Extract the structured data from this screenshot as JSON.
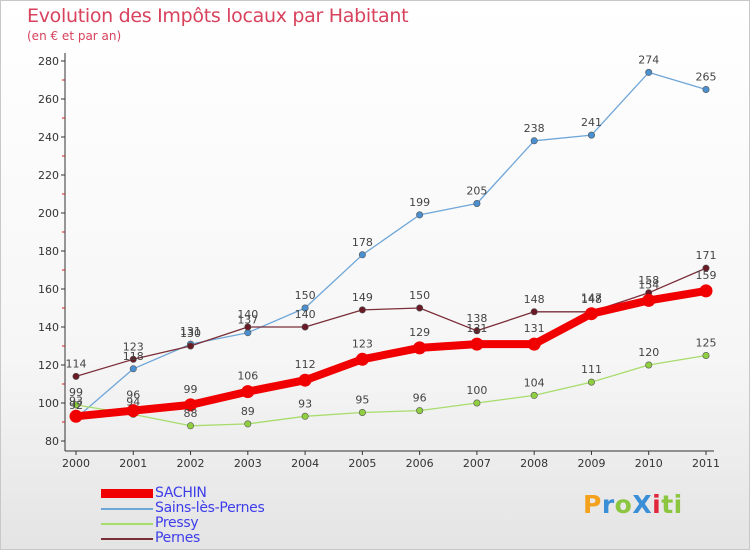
{
  "title": "Evolution des Impôts locaux par Habitant",
  "subtitle": "(en € et par an)",
  "logo": {
    "text": "ProXiti",
    "letter_colors": [
      "#f4a11d",
      "#3a8fd6",
      "#8cc640",
      "#3a8fd6",
      "#e0263a",
      "#8cc640",
      "#8cc640"
    ]
  },
  "chart_data": {
    "type": "line",
    "x": [
      "2000",
      "2001",
      "2002",
      "2003",
      "2004",
      "2005",
      "2006",
      "2007",
      "2008",
      "2009",
      "2010",
      "2011"
    ],
    "ylim": [
      80,
      280
    ],
    "yticks": [
      80,
      100,
      120,
      140,
      160,
      180,
      200,
      220,
      240,
      260,
      280
    ],
    "grid": false,
    "legend_position": "bottom-left",
    "series": [
      {
        "name": "Sains-lès-Pernes",
        "color": "#6ea6d8",
        "marker": "#4a90d0",
        "values": [
          92,
          118,
          131,
          137,
          150,
          178,
          199,
          205,
          238,
          241,
          274,
          265
        ],
        "labels": [
          "92",
          "118",
          "131",
          "137",
          "150",
          "178",
          "199",
          "205",
          "238",
          "241",
          "274",
          "265"
        ]
      },
      {
        "name": "Pressy",
        "color": "#a8dc6c",
        "marker": "#90d040",
        "values": [
          99,
          94,
          88,
          89,
          93,
          95,
          96,
          100,
          104,
          111,
          120,
          125
        ],
        "labels": [
          "99",
          "94",
          "88",
          "89",
          "93",
          "95",
          "96",
          "100",
          "104",
          "111",
          "120",
          "125"
        ]
      },
      {
        "name": "Pernes",
        "color": "#7a2e38",
        "marker": "#6a1a25",
        "values": [
          114,
          123,
          130,
          140,
          140,
          149,
          150,
          138,
          148,
          148,
          158,
          171
        ],
        "labels": [
          "114",
          "123",
          "130",
          "140",
          "140",
          "149",
          "150",
          "138",
          "148",
          "148",
          "158",
          "171"
        ]
      },
      {
        "name": "SACHIN",
        "color": "#f00000",
        "marker": "#f00000",
        "values": [
          93,
          96,
          99,
          106,
          112,
          123,
          129,
          131,
          131,
          147,
          154,
          159
        ],
        "labels": [
          "93",
          "96",
          "99",
          "106",
          "112",
          "123",
          "129",
          "131",
          "131",
          "147",
          "154",
          "159"
        ]
      }
    ],
    "legend_order": [
      "SACHIN",
      "Sains-lès-Pernes",
      "Pressy",
      "Pernes"
    ]
  }
}
